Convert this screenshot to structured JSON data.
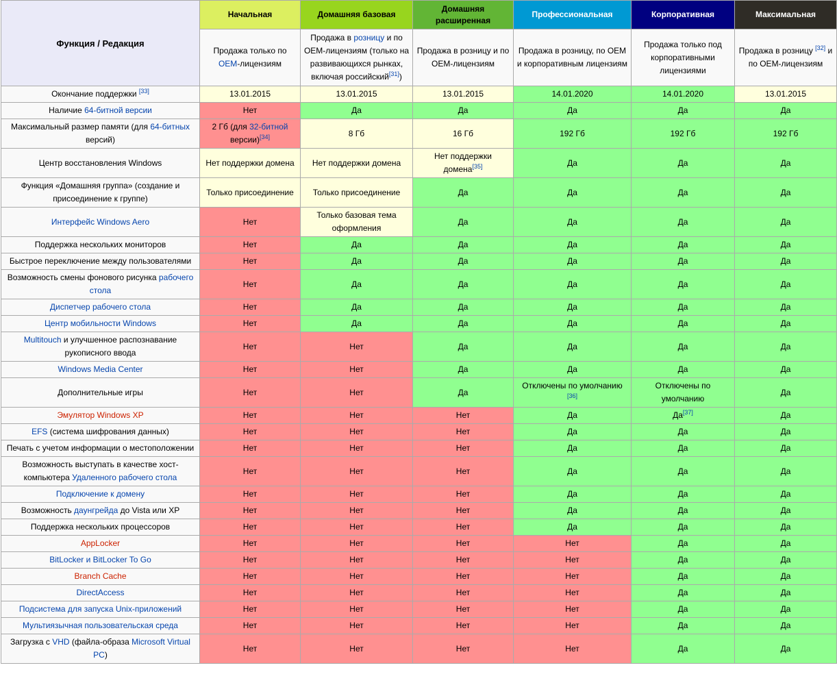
{
  "corner_label": "Функция / Редакция",
  "editions": [
    {
      "name": "Начальная",
      "bg": "#dcef60",
      "fg": "#000000",
      "desc": [
        "Продажа только по ",
        [
          "OEM",
          "a"
        ],
        "-лицензиям"
      ]
    },
    {
      "name": "Домашняя базовая",
      "bg": "#98d51e",
      "fg": "#000000",
      "desc": [
        "Продажа в ",
        [
          "розницу",
          "a"
        ],
        " и по OEM-лицензиям (только на развивающихся рынках, включая российский",
        [
          "[31]",
          "sup"
        ],
        ")"
      ]
    },
    {
      "name": "Домашняя расширенная",
      "bg": "#62b535",
      "fg": "#000000",
      "desc": [
        "Продажа в розницу и по OEM-лицензиям"
      ]
    },
    {
      "name": "Профессиональная",
      "bg": "#0099d3",
      "fg": "#ffffff",
      "desc": [
        "Продажа в розницу, по OEM и корпоративным лицензиям"
      ]
    },
    {
      "name": "Корпоративная",
      "bg": "#000080",
      "fg": "#ffffff",
      "desc": [
        "Продажа только под корпоративными лицензиями"
      ]
    },
    {
      "name": "Максимальная",
      "bg": "#2f2c26",
      "fg": "#ffffff",
      "desc": [
        "Продажа в розницу ",
        [
          "[32]",
          "sup"
        ],
        " и по OEM-лицензиям"
      ]
    }
  ],
  "colors": {
    "yes": "#90ff90",
    "no": "#ff9090",
    "partial": "#ffffdd"
  },
  "rows": [
    {
      "f": [
        "Окончание поддержки ",
        [
          "[33]",
          "sup"
        ]
      ],
      "c": [
        [
          "y",
          "13.01.2015"
        ],
        [
          "y",
          "13.01.2015"
        ],
        [
          "y",
          "13.01.2015"
        ],
        [
          "g",
          "14.01.2020"
        ],
        [
          "g",
          "14.01.2020"
        ],
        [
          "y",
          "13.01.2015"
        ]
      ]
    },
    {
      "f": [
        "Наличие ",
        [
          "64-битной версии",
          "a"
        ]
      ],
      "c": [
        "Нет",
        "Да",
        "Да",
        "Да",
        "Да",
        "Да"
      ]
    },
    {
      "f": [
        "Максимальный размер памяти (для ",
        [
          "64-битных",
          "a"
        ],
        " версий)"
      ],
      "c": [
        [
          "r",
          "2 Гб (для ",
          [
            "32-битной",
            "a"
          ],
          " версии)",
          [
            "[34]",
            "sup"
          ]
        ],
        [
          "y",
          "8 Гб"
        ],
        [
          "y",
          "16 Гб"
        ],
        [
          "g",
          "192 Гб"
        ],
        [
          "g",
          "192 Гб"
        ],
        [
          "g",
          "192 Гб"
        ]
      ]
    },
    {
      "f": [
        "Центр восстановления Windows"
      ],
      "c": [
        [
          "y",
          "Нет поддержки домена"
        ],
        [
          "y",
          "Нет поддержки домена"
        ],
        [
          "y",
          "Нет поддержки домена",
          [
            "[35]",
            "sup"
          ]
        ],
        "Да",
        "Да",
        "Да"
      ]
    },
    {
      "f": [
        "Функция «Домашняя группа» (создание и присоединение к группе)"
      ],
      "c": [
        [
          "y",
          "Только присоединение"
        ],
        [
          "y",
          "Только присоединение"
        ],
        "Да",
        "Да",
        "Да",
        "Да"
      ]
    },
    {
      "f": [
        [
          "Интерфейс Windows Aero",
          "a"
        ]
      ],
      "c": [
        "Нет",
        [
          "y",
          "Только базовая тема оформления"
        ],
        "Да",
        "Да",
        "Да",
        "Да"
      ]
    },
    {
      "f": [
        "Поддержка нескольких мониторов"
      ],
      "c": [
        "Нет",
        "Да",
        "Да",
        "Да",
        "Да",
        "Да"
      ]
    },
    {
      "f": [
        "Быстрое переключение между пользователями"
      ],
      "c": [
        "Нет",
        "Да",
        "Да",
        "Да",
        "Да",
        "Да"
      ]
    },
    {
      "f": [
        "Возможность смены фонового рисунка ",
        [
          "рабочего стола",
          "a"
        ]
      ],
      "c": [
        "Нет",
        "Да",
        "Да",
        "Да",
        "Да",
        "Да"
      ]
    },
    {
      "f": [
        [
          "Диспетчер рабочего стола",
          "a"
        ]
      ],
      "c": [
        "Нет",
        "Да",
        "Да",
        "Да",
        "Да",
        "Да"
      ]
    },
    {
      "f": [
        [
          "Центр мобильности Windows",
          "a"
        ]
      ],
      "c": [
        "Нет",
        "Да",
        "Да",
        "Да",
        "Да",
        "Да"
      ]
    },
    {
      "f": [
        [
          "Multitouch",
          "a"
        ],
        " и улучшенное распознавание рукописного ввода"
      ],
      "c": [
        "Нет",
        "Нет",
        "Да",
        "Да",
        "Да",
        "Да"
      ]
    },
    {
      "f": [
        [
          "Windows Media Center",
          "a"
        ]
      ],
      "c": [
        "Нет",
        "Нет",
        "Да",
        "Да",
        "Да",
        "Да"
      ]
    },
    {
      "f": [
        "Дополнительные игры"
      ],
      "c": [
        "Нет",
        "Нет",
        "Да",
        [
          "g",
          "Отключены по умолчанию ",
          [
            "[36]",
            "sup"
          ]
        ],
        [
          "g",
          "Отключены по умолчанию"
        ],
        "Да"
      ]
    },
    {
      "f": [
        [
          "Эмулятор Windows XP",
          "r"
        ]
      ],
      "c": [
        "Нет",
        "Нет",
        "Нет",
        "Да",
        [
          "g",
          "Да",
          [
            "[37]",
            "sup"
          ]
        ],
        "Да"
      ]
    },
    {
      "f": [
        [
          "EFS",
          "a"
        ],
        " (система шифрования данных)"
      ],
      "c": [
        "Нет",
        "Нет",
        "Нет",
        "Да",
        "Да",
        "Да"
      ]
    },
    {
      "f": [
        "Печать с учетом информации о местоположении"
      ],
      "c": [
        "Нет",
        "Нет",
        "Нет",
        "Да",
        "Да",
        "Да"
      ]
    },
    {
      "f": [
        "Возможность выступать в качестве хост-компьютера ",
        [
          "Удаленного рабочего стола",
          "a"
        ]
      ],
      "c": [
        "Нет",
        "Нет",
        "Нет",
        "Да",
        "Да",
        "Да"
      ]
    },
    {
      "f": [
        [
          "Подключение к домену",
          "a"
        ]
      ],
      "c": [
        "Нет",
        "Нет",
        "Нет",
        "Да",
        "Да",
        "Да"
      ]
    },
    {
      "f": [
        "Возможность ",
        [
          "даунгрейда",
          "a"
        ],
        " до Vista или XP"
      ],
      "c": [
        "Нет",
        "Нет",
        "Нет",
        "Да",
        "Да",
        "Да"
      ]
    },
    {
      "f": [
        "Поддержка нескольких процессоров"
      ],
      "c": [
        "Нет",
        "Нет",
        "Нет",
        "Да",
        "Да",
        "Да"
      ]
    },
    {
      "f": [
        [
          "AppLocker",
          "r"
        ]
      ],
      "c": [
        "Нет",
        "Нет",
        "Нет",
        "Нет",
        "Да",
        "Да"
      ]
    },
    {
      "f": [
        [
          "BitLocker и BitLocker To Go",
          "a"
        ]
      ],
      "c": [
        "Нет",
        "Нет",
        "Нет",
        "Нет",
        "Да",
        "Да"
      ]
    },
    {
      "f": [
        [
          "Branch Cache",
          "r"
        ]
      ],
      "c": [
        "Нет",
        "Нет",
        "Нет",
        "Нет",
        "Да",
        "Да"
      ]
    },
    {
      "f": [
        [
          "DirectAccess",
          "a"
        ]
      ],
      "c": [
        "Нет",
        "Нет",
        "Нет",
        "Нет",
        "Да",
        "Да"
      ]
    },
    {
      "f": [
        [
          "Подсистема для запуска Unix-приложений",
          "a"
        ]
      ],
      "c": [
        "Нет",
        "Нет",
        "Нет",
        "Нет",
        "Да",
        "Да"
      ]
    },
    {
      "f": [
        [
          "Мультиязычная пользовательская среда",
          "a"
        ]
      ],
      "c": [
        "Нет",
        "Нет",
        "Нет",
        "Нет",
        "Да",
        "Да"
      ]
    },
    {
      "f": [
        "Загрузка с ",
        [
          "VHD",
          "a"
        ],
        " (файла-образа ",
        [
          "Microsoft Virtual PC",
          "a"
        ],
        ")"
      ],
      "c": [
        "Нет",
        "Нет",
        "Нет",
        "Нет",
        "Да",
        "Да"
      ]
    }
  ]
}
